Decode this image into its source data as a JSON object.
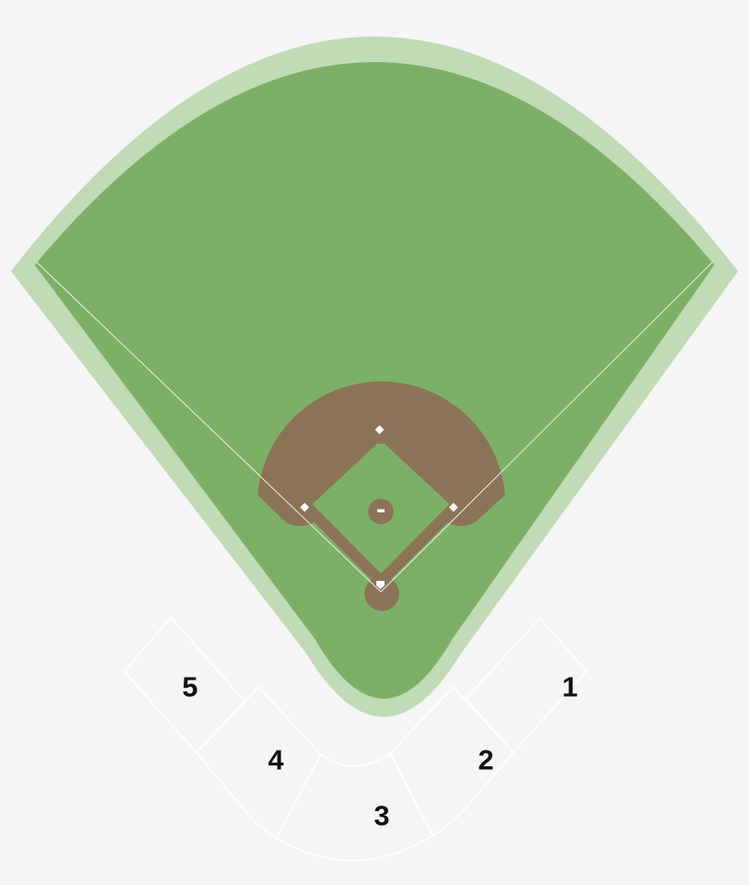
{
  "colors": {
    "background": "#f5f5f5",
    "warning_track": "#c0dbb6",
    "grass": "#7db067",
    "dirt": "#8b7358",
    "lines": "#ffffff",
    "label": "#111111"
  },
  "sections": [
    {
      "id": "section-1",
      "label": "1"
    },
    {
      "id": "section-2",
      "label": "2"
    },
    {
      "id": "section-3",
      "label": "3"
    },
    {
      "id": "section-4",
      "label": "4"
    },
    {
      "id": "section-5",
      "label": "5"
    }
  ]
}
